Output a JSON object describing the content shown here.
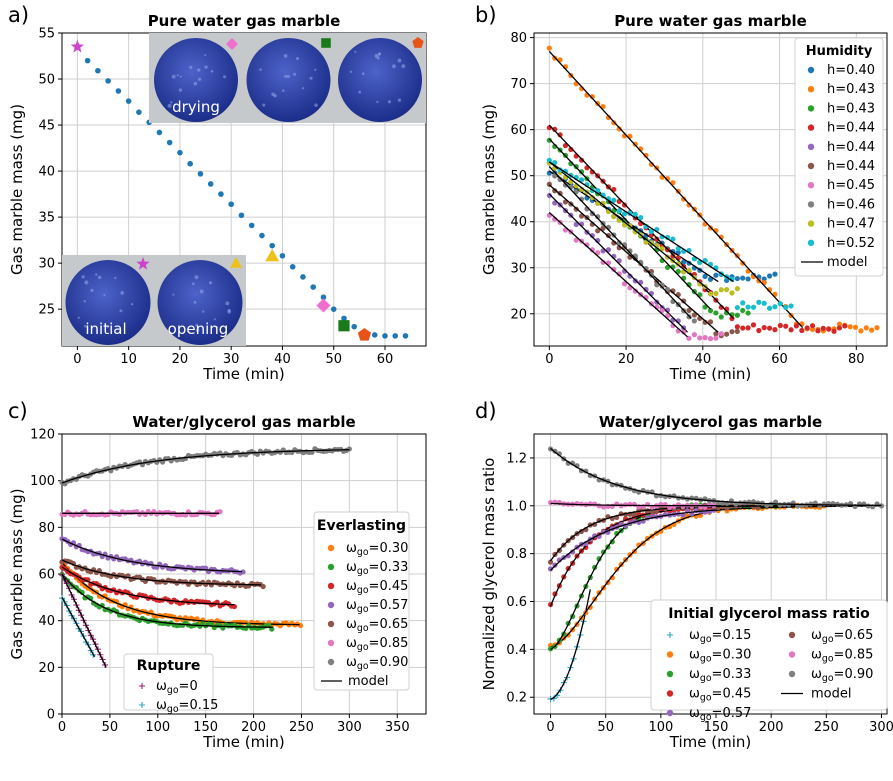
{
  "chart_data": [
    {
      "panel_label": "a)",
      "type": "scatter",
      "title": "Pure water gas marble",
      "xlabel": "Time (min)",
      "ylabel": "Gas marble mass (mg)",
      "xlim": [
        -3,
        68
      ],
      "ylim": [
        21,
        55
      ],
      "xticks": [
        0,
        10,
        20,
        30,
        40,
        50,
        60
      ],
      "yticks": [
        25,
        30,
        35,
        40,
        45,
        50,
        55
      ],
      "grid": true,
      "series": [
        {
          "color": "#1f77b4",
          "x": [
            2,
            4,
            6,
            8,
            10,
            12,
            14,
            16,
            18,
            20,
            22,
            24,
            26,
            28,
            30,
            32,
            34,
            36,
            38,
            40,
            42,
            44,
            46,
            48,
            50,
            52,
            54,
            56,
            58,
            60,
            62,
            64
          ],
          "y": [
            52.0,
            50.9,
            49.8,
            48.7,
            47.6,
            46.4,
            45.3,
            44.2,
            43.1,
            42.0,
            40.8,
            39.7,
            38.6,
            37.5,
            36.4,
            35.2,
            34.1,
            33.0,
            31.9,
            30.8,
            29.6,
            28.5,
            27.4,
            26.3,
            25.0,
            24.0,
            23.1,
            22.5,
            22.2,
            22.1,
            22.1,
            22.1
          ]
        }
      ],
      "highlights": [
        {
          "shape": "star",
          "color": "#cc44cc",
          "x": 0,
          "y": 53.5
        },
        {
          "shape": "triangle",
          "color": "#ecc21a",
          "x": 38,
          "y": 30.8
        },
        {
          "shape": "diamond",
          "color": "#ef6fcf",
          "x": 48,
          "y": 25.4
        },
        {
          "shape": "square",
          "color": "#1a7a1a",
          "x": 52,
          "y": 23.2
        },
        {
          "shape": "pentagon",
          "color": "#e8531a",
          "x": 56,
          "y": 22.2
        }
      ],
      "photo_labels": [
        "drying",
        "initial",
        "opening"
      ]
    },
    {
      "panel_label": "b)",
      "type": "scatter",
      "title": "Pure water gas marble",
      "xlabel": "Time (min)",
      "ylabel": "Gas marble mass (mg)",
      "xlim": [
        -4,
        88
      ],
      "ylim": [
        13,
        81
      ],
      "xticks": [
        0,
        20,
        40,
        60,
        80
      ],
      "yticks": [
        20,
        30,
        40,
        50,
        60,
        70,
        80
      ],
      "grid": true,
      "legend": {
        "title": "Humidity",
        "position": "top-right",
        "model_label": "model"
      },
      "series": [
        {
          "name": "h=0.40",
          "color": "#1f77b4",
          "start": [
            0,
            51
          ],
          "end": [
            44,
            27
          ],
          "floor": 28,
          "tend": 60
        },
        {
          "name": "h=0.43",
          "color": "#ff7f0e",
          "start": [
            0,
            77
          ],
          "end": [
            66,
            17
          ],
          "floor": 17,
          "tend": 86
        },
        {
          "name": "h=0.43",
          "color": "#2ca02c",
          "start": [
            0,
            58
          ],
          "end": [
            42,
            21
          ],
          "floor": 20,
          "tend": 52
        },
        {
          "name": "h=0.44",
          "color": "#d62728",
          "start": [
            0,
            61
          ],
          "end": [
            48,
            19
          ],
          "floor": 17,
          "tend": 78
        },
        {
          "name": "h=0.44",
          "color": "#9467bd",
          "start": [
            0,
            46
          ],
          "end": [
            36,
            16
          ],
          "floor": 16,
          "tend": 36
        },
        {
          "name": "h=0.44",
          "color": "#8c564b",
          "start": [
            0,
            48
          ],
          "end": [
            44,
            16
          ],
          "floor": 16,
          "tend": 50
        },
        {
          "name": "h=0.45",
          "color": "#e377c2",
          "start": [
            0,
            42
          ],
          "end": [
            36,
            15
          ],
          "floor": 15,
          "tend": 46
        },
        {
          "name": "h=0.46",
          "color": "#7f7f7f",
          "start": [
            0,
            52
          ],
          "end": [
            37,
            19
          ],
          "floor": 19,
          "tend": 38
        },
        {
          "name": "h=0.47",
          "color": "#bcbd22",
          "start": [
            0,
            53
          ],
          "end": [
            42,
            25
          ],
          "floor": 25,
          "tend": 50
        },
        {
          "name": "h=0.52",
          "color": "#17becf",
          "start": [
            0,
            53
          ],
          "end": [
            48,
            27
          ],
          "floor": 22,
          "tend": 64
        }
      ]
    },
    {
      "panel_label": "c)",
      "type": "scatter",
      "title": "Water/glycerol gas marble",
      "xlabel": "Time (min)",
      "ylabel": "Gas marble mass (mg)",
      "xlim": [
        0,
        380
      ],
      "ylim": [
        0,
        120
      ],
      "xticks": [
        0,
        50,
        100,
        150,
        200,
        250,
        300,
        350
      ],
      "yticks": [
        0,
        20,
        40,
        60,
        80,
        100,
        120
      ],
      "grid": true,
      "legend_everlasting": {
        "title": "Everlasting",
        "position": "right",
        "model_label": "model"
      },
      "legend_rupture": {
        "title": "Rupture",
        "position": "lower-center"
      },
      "series": [
        {
          "name": "ωgo=0.30",
          "group": "everlasting",
          "color": "#ff7f0e",
          "y0": 65,
          "yinf": 38,
          "tau": 55,
          "tend": 250
        },
        {
          "name": "ωgo=0.33",
          "group": "everlasting",
          "color": "#2ca02c",
          "y0": 60,
          "yinf": 37,
          "tau": 45,
          "tend": 220
        },
        {
          "name": "ωgo=0.45",
          "group": "everlasting",
          "color": "#d62728",
          "y0": 63,
          "yinf": 46,
          "tau": 60,
          "tend": 180
        },
        {
          "name": "ωgo=0.57",
          "group": "everlasting",
          "color": "#9467bd",
          "y0": 75,
          "yinf": 60,
          "tau": 70,
          "tend": 190
        },
        {
          "name": "ωgo=0.65",
          "group": "everlasting",
          "color": "#8c564b",
          "y0": 66,
          "yinf": 55,
          "tau": 60,
          "tend": 210
        },
        {
          "name": "ωgo=0.85",
          "group": "everlasting",
          "color": "#e377c2",
          "y0": 86,
          "yinf": 86,
          "tau": 60,
          "tend": 165
        },
        {
          "name": "ωgo=0.90",
          "group": "everlasting",
          "color": "#7f7f7f",
          "y0": 99,
          "yinf": 114,
          "tau": 100,
          "tend": 300
        },
        {
          "name": "ωgo=0",
          "group": "rupture",
          "color": "#a0207a",
          "marker": "plus",
          "y0": 60,
          "slope": -0.87,
          "tend": 46
        },
        {
          "name": "ωgo=0.15",
          "group": "rupture",
          "color": "#2aa7c9",
          "marker": "plus",
          "y0": 50,
          "slope": -0.75,
          "tend": 34
        }
      ]
    },
    {
      "panel_label": "d)",
      "type": "scatter",
      "title": "Water/glycerol gas marble",
      "xlabel": "Time (min)",
      "ylabel": "Normalized glycerol mass ratio",
      "xlim": [
        -15,
        305
      ],
      "ylim": [
        0.13,
        1.3
      ],
      "xticks": [
        0,
        50,
        100,
        150,
        200,
        250,
        300
      ],
      "yticks": [
        0.2,
        0.4,
        0.6,
        0.8,
        1.0,
        1.2
      ],
      "grid": true,
      "legend": {
        "title": "Initial glycerol mass ratio",
        "position": "lower-right",
        "model_label": "model"
      },
      "series": [
        {
          "name": "ωgo=0.15",
          "color": "#2aa7c9",
          "marker": "plus",
          "y0": 0.19,
          "kind": "rise",
          "tend": 30
        },
        {
          "name": "ωgo=0.30",
          "color": "#ff7f0e",
          "y0": 0.41,
          "tau": 70,
          "kind": "sigmoid",
          "tend": 250
        },
        {
          "name": "ωgo=0.33",
          "color": "#2ca02c",
          "y0": 0.4,
          "tau": 45,
          "kind": "sigmoid",
          "tend": 205
        },
        {
          "name": "ωgo=0.45",
          "color": "#d62728",
          "y0": 0.58,
          "tau": 35,
          "kind": "exp",
          "tend": 160
        },
        {
          "name": "ωgo=0.57",
          "color": "#9467bd",
          "y0": 0.73,
          "tau": 55,
          "kind": "exp",
          "tend": 150
        },
        {
          "name": "ωgo=0.65",
          "color": "#8c564b",
          "y0": 0.77,
          "tau": 35,
          "kind": "exp",
          "tend": 190
        },
        {
          "name": "ωgo=0.85",
          "color": "#e377c2",
          "y0": 1.01,
          "tau": 40,
          "kind": "exp",
          "tend": 150
        },
        {
          "name": "ωgo=0.90",
          "color": "#7f7f7f",
          "y0": 1.24,
          "tau": 60,
          "kind": "exp",
          "tend": 300
        }
      ]
    }
  ]
}
